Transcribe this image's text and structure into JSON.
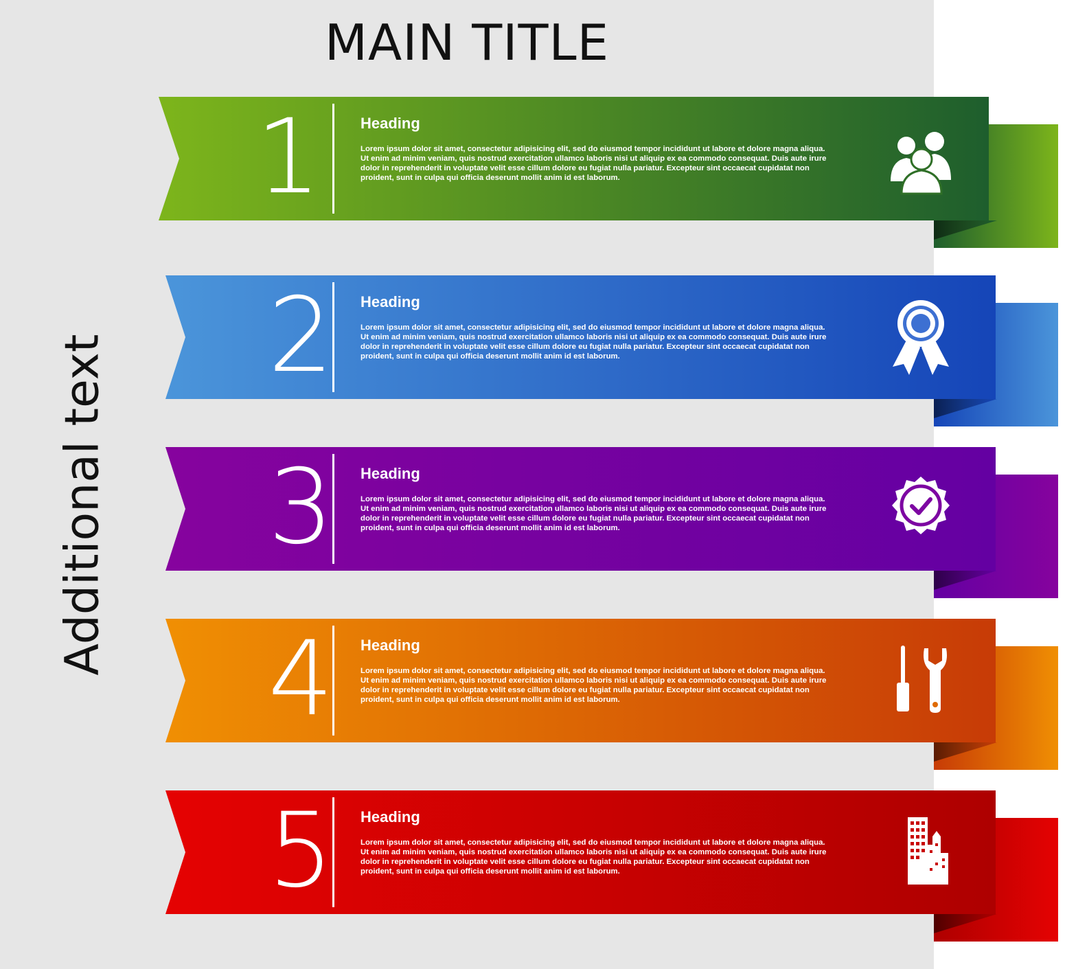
{
  "title": "MAIN TITLE",
  "side_text": "Additional text",
  "steps": [
    {
      "number": "1",
      "heading": "Heading",
      "text": "Lorem ipsum dolor sit amet, consectetur adipisicing elit, sed do eiusmod tempor incididunt ut labore et dolore magna aliqua. Ut enim ad minim veniam, quis nostrud exercitation ullamco laboris nisi ut aliquip ex ea commodo consequat. Duis aute irure dolor in reprehenderit in voluptate velit esse cillum dolore eu fugiat nulla pariatur. Excepteur sint occaecat cupidatat non proident, sunt in culpa qui officia deserunt mollit anim id est laborum.",
      "icon": "people-group-icon",
      "color_from": "#7db51b",
      "color_to": "#1e5e2d"
    },
    {
      "number": "2",
      "heading": "Heading",
      "text": "Lorem ipsum dolor sit amet, consectetur adipisicing elit, sed do eiusmod tempor incididunt ut labore et dolore magna aliqua. Ut enim ad minim veniam, quis nostrud exercitation ullamco laboris nisi ut aliquip ex ea commodo consequat. Duis aute irure dolor in reprehenderit in voluptate velit esse cillum dolore eu fugiat nulla pariatur. Excepteur sint occaecat cupidatat non proident, sunt in culpa qui officia deserunt mollit anim id est laborum.",
      "icon": "award-ribbon-icon",
      "color_from": "#4b95da",
      "color_to": "#1545b8"
    },
    {
      "number": "3",
      "heading": "Heading",
      "text": "Lorem ipsum dolor sit amet, consectetur adipisicing elit, sed do eiusmod tempor incididunt ut labore et dolore magna aliqua. Ut enim ad minim veniam, quis nostrud exercitation ullamco laboris nisi ut aliquip ex ea commodo consequat. Duis aute irure dolor in reprehenderit in voluptate velit esse cillum dolore eu fugiat nulla pariatur. Excepteur sint occaecat cupidatat non proident, sunt in culpa qui officia deserunt mollit anim id est laborum.",
      "icon": "verified-badge-icon",
      "color_from": "#86039e",
      "color_to": "#6400a2"
    },
    {
      "number": "4",
      "heading": "Heading",
      "text": "Lorem ipsum dolor sit amet, consectetur adipisicing elit, sed do eiusmod tempor incididunt ut labore et dolore magna aliqua. Ut enim ad minim veniam, quis nostrud exercitation ullamco laboris nisi ut aliquip ex ea commodo consequat. Duis aute irure dolor in reprehenderit in voluptate velit esse cillum dolore eu fugiat nulla pariatur. Excepteur sint occaecat cupidatat non proident, sunt in culpa qui officia deserunt mollit anim id est laborum.",
      "icon": "tools-icon",
      "color_from": "#f08f03",
      "color_to": "#c73b06"
    },
    {
      "number": "5",
      "heading": "Heading",
      "text": "Lorem ipsum dolor sit amet, consectetur adipisicing elit, sed do eiusmod tempor incididunt ut labore et dolore magna aliqua. Ut enim ad minim veniam, quis nostrud exercitation ullamco laboris nisi ut aliquip ex ea commodo consequat. Duis aute irure dolor in reprehenderit in voluptate velit esse cillum dolore eu fugiat nulla pariatur. Excepteur sint occaecat cupidatat non proident, sunt in culpa qui officia deserunt mollit anim id est laborum.",
      "icon": "office-buildings-icon",
      "color_from": "#e50202",
      "color_to": "#ae0000"
    }
  ]
}
